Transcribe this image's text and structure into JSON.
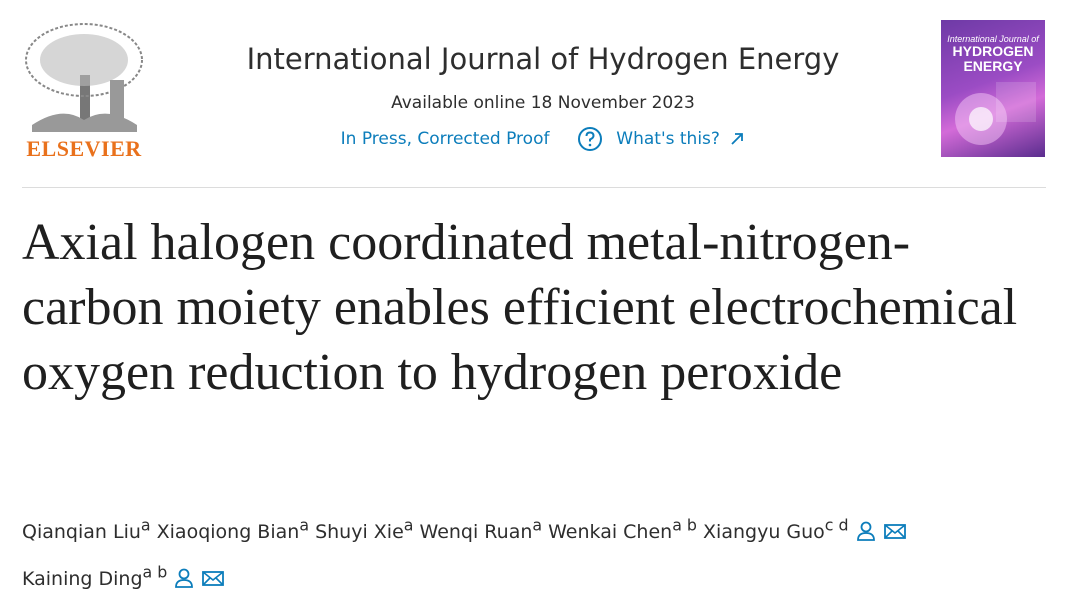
{
  "publisher": "ELSEVIER",
  "journal": "International Journal of Hydrogen Energy",
  "availability": "Available online 18 November 2023",
  "status": "In Press, Corrected Proof",
  "help_link": "What's this?",
  "cover": {
    "line1": "International Journal of",
    "line2": "HYDROGEN",
    "line3": "ENERGY"
  },
  "title": "Axial halogen coordinated metal-nitrogen-carbon moiety enables efficient electrochemical oxygen reduction to hydrogen peroxide",
  "authors": [
    {
      "name": "Qianqian Liu",
      "affiliations": "a",
      "corresponding": false
    },
    {
      "name": "Xiaoqiong Bian",
      "affiliations": "a",
      "corresponding": false
    },
    {
      "name": "Shuyi Xie",
      "affiliations": "a",
      "corresponding": false
    },
    {
      "name": "Wenqi Ruan",
      "affiliations": "a",
      "corresponding": false
    },
    {
      "name": "Wenkai Chen",
      "affiliations": "a b",
      "corresponding": false
    },
    {
      "name": "Xiangyu Guo",
      "affiliations": "c d",
      "corresponding": true
    },
    {
      "name": "Kaining Ding",
      "affiliations": "a b",
      "corresponding": true
    }
  ]
}
